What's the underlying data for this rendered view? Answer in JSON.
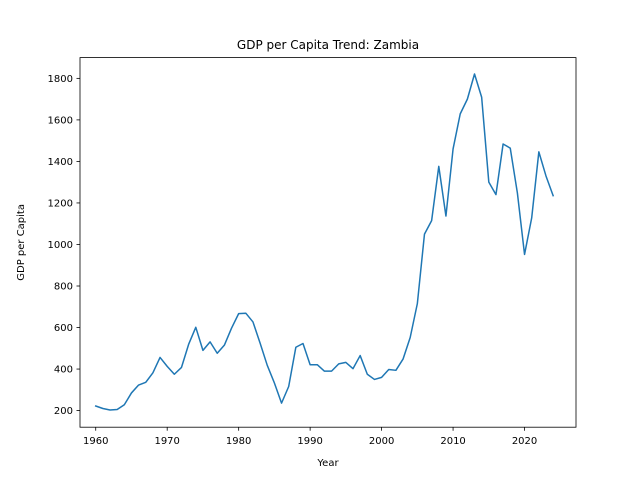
{
  "chart_data": {
    "type": "line",
    "title": "GDP per Capita Trend: Zambia",
    "xlabel": "Year",
    "ylabel": "GDP per Capita",
    "xlim": [
      1957.8,
      2027.2
    ],
    "ylim": [
      120,
      1900
    ],
    "xticks": [
      1960,
      1970,
      1980,
      1990,
      2000,
      2010,
      2020
    ],
    "yticks": [
      200,
      400,
      600,
      800,
      1000,
      1200,
      1400,
      1600,
      1800
    ],
    "grid": false,
    "line_color": "#1f77b4",
    "series": [
      {
        "x": [
          1960,
          1961,
          1962,
          1963,
          1964,
          1965,
          1966,
          1967,
          1968,
          1969,
          1970,
          1971,
          1972,
          1973,
          1974,
          1975,
          1976,
          1977,
          1978,
          1979,
          1980,
          1981,
          1982,
          1983,
          1984,
          1985,
          1986,
          1987,
          1988,
          1989,
          1990,
          1991,
          1992,
          1993,
          1994,
          1995,
          1996,
          1997,
          1998,
          1999,
          2000,
          2001,
          2002,
          2003,
          2004,
          2005,
          2006,
          2007,
          2008,
          2009,
          2010,
          2011,
          2012,
          2013,
          2014,
          2015,
          2016,
          2017,
          2018,
          2019,
          2020,
          2021,
          2022,
          2023,
          2024
        ],
        "values": [
          222,
          210,
          203,
          205,
          228,
          285,
          323,
          336,
          382,
          456,
          413,
          375,
          408,
          519,
          601,
          490,
          531,
          476,
          515,
          597,
          667,
          669,
          627,
          525,
          418,
          333,
          236,
          316,
          505,
          523,
          421,
          421,
          390,
          390,
          425,
          432,
          402,
          465,
          375,
          350,
          360,
          398,
          394,
          448,
          552,
          715,
          1050,
          1115,
          1376,
          1137,
          1460,
          1629,
          1700,
          1821,
          1709,
          1300,
          1240,
          1484,
          1464,
          1248,
          952,
          1128,
          1446,
          1330,
          1235
        ]
      }
    ]
  }
}
